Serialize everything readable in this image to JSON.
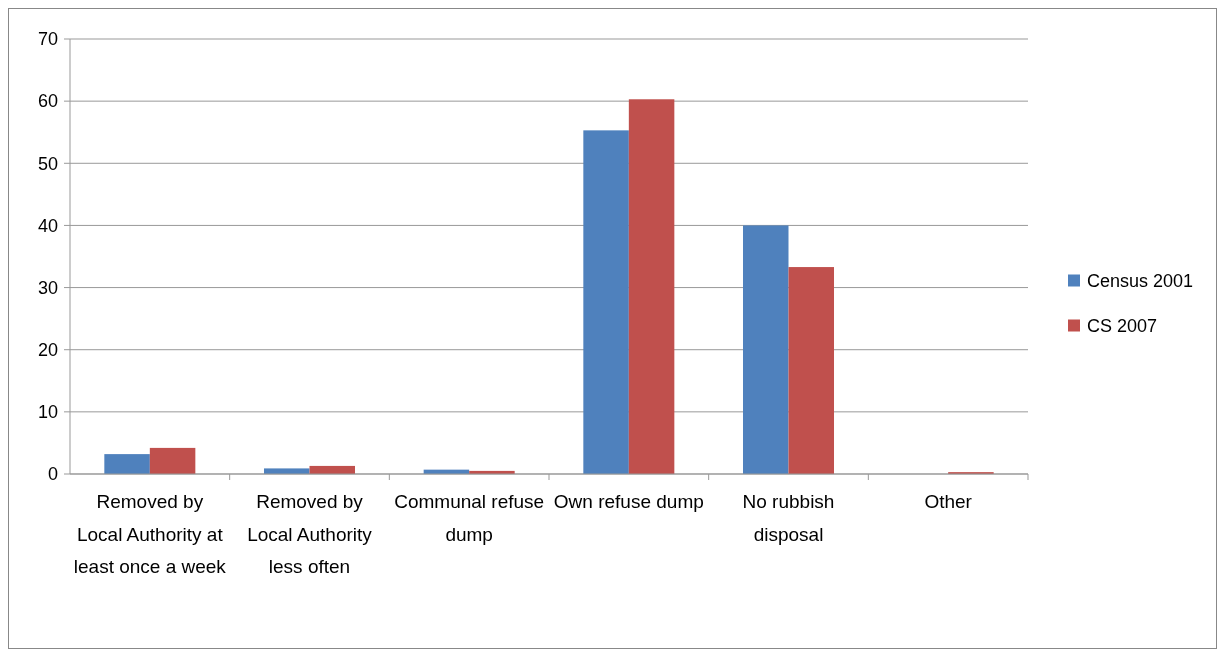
{
  "chart_data": {
    "type": "bar",
    "categories": [
      "Removed by Local Authority at least once a week",
      "Removed by Local Authority less often",
      "Communal refuse dump",
      "Own refuse dump",
      "No rubbish disposal",
      "Other"
    ],
    "series": [
      {
        "name": "Census 2001",
        "color": "#4f81bd",
        "values": [
          3.2,
          0.9,
          0.7,
          55.3,
          40.0,
          0
        ]
      },
      {
        "name": "CS 2007",
        "color": "#c0504d",
        "values": [
          4.2,
          1.3,
          0.5,
          60.3,
          33.3,
          0.3
        ]
      }
    ],
    "ylim": [
      0,
      70
    ],
    "yticks": [
      0,
      10,
      20,
      30,
      40,
      50,
      60,
      70
    ],
    "grid": "y",
    "legend": "right"
  }
}
